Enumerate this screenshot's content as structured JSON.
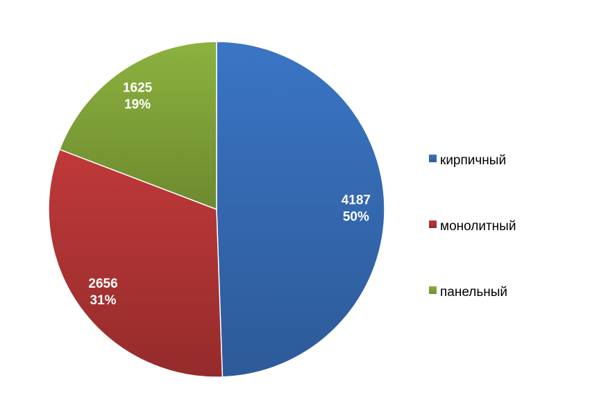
{
  "chart_data": {
    "type": "pie",
    "title": "",
    "categories": [
      "кирпичный",
      "монолитный",
      "панельный"
    ],
    "values": [
      4187,
      2656,
      1625
    ],
    "data_labels": [
      {
        "value": "4187",
        "percent": "50%"
      },
      {
        "value": "2656",
        "percent": "31%"
      },
      {
        "value": "1625",
        "percent": "19%"
      }
    ],
    "colors": [
      "#3A75C4",
      "#C0393A",
      "#8DB23F"
    ],
    "dark_colors": [
      "#2D5A98",
      "#952B2B",
      "#6C8A2E"
    ],
    "start_angle": "12 o'clock, clockwise",
    "legend": {
      "placement": "right",
      "items": [
        "кирпичный",
        "монолитный",
        "панельный"
      ]
    }
  }
}
